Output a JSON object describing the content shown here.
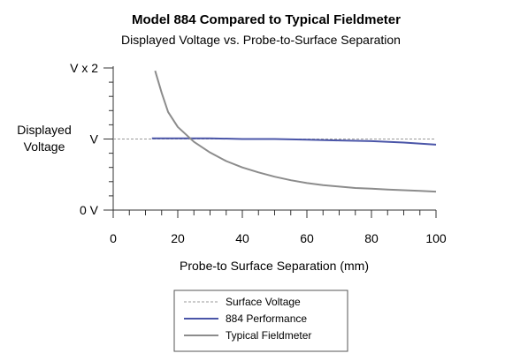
{
  "chart_data": {
    "type": "line",
    "title": "Model 884 Compared to Typical Fieldmeter",
    "subtitle": "Displayed Voltage vs. Probe-to-Surface Separation",
    "xlabel": "Probe-to Surface Separation (mm)",
    "ylabel": [
      "Displayed",
      "Voltage"
    ],
    "xlim": [
      0,
      100
    ],
    "ylim": [
      0,
      2
    ],
    "x_ticks": [
      0,
      20,
      40,
      60,
      80,
      100
    ],
    "x_tick_labels": [
      "0",
      "20",
      "40",
      "60",
      "80",
      "100"
    ],
    "y_ticks": [
      0,
      1,
      2
    ],
    "y_tick_labels": [
      "0 V",
      "V",
      "V x 2"
    ],
    "grid": false,
    "legend_position": "bottom-center",
    "series": [
      {
        "name": "Surface Voltage",
        "style": "dashed",
        "color": "#9a9a9a",
        "x": [
          0,
          100
        ],
        "y": [
          1.0,
          1.0
        ]
      },
      {
        "name": "884 Performance",
        "style": "solid",
        "color": "#4a55a8",
        "x": [
          12,
          20,
          30,
          40,
          50,
          60,
          70,
          80,
          90,
          100
        ],
        "y": [
          1.01,
          1.01,
          1.01,
          1.0,
          1.0,
          0.99,
          0.98,
          0.97,
          0.95,
          0.92
        ]
      },
      {
        "name": "Typical Fieldmeter",
        "style": "solid",
        "color": "#8c8c8c",
        "x": [
          13,
          15,
          17,
          20,
          25,
          30,
          35,
          40,
          45,
          50,
          55,
          60,
          65,
          70,
          75,
          80,
          85,
          90,
          95,
          100
        ],
        "y": [
          1.96,
          1.65,
          1.38,
          1.17,
          0.96,
          0.81,
          0.69,
          0.6,
          0.53,
          0.47,
          0.42,
          0.38,
          0.35,
          0.33,
          0.31,
          0.3,
          0.29,
          0.28,
          0.27,
          0.26
        ]
      }
    ]
  }
}
